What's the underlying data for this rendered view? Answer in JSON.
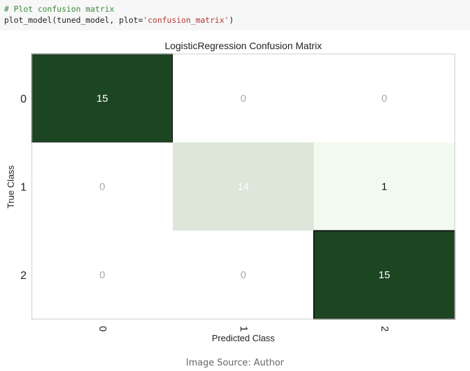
{
  "code": {
    "comment": "# Plot confusion matrix",
    "call_prefix": "plot_model(tuned_model, plot=",
    "call_string": "'confusion_matrix'",
    "call_suffix": ")"
  },
  "chart_data": {
    "type": "heatmap",
    "title": "LogisticRegression Confusion Matrix",
    "xlabel": "Predicted Class",
    "ylabel": "True Class",
    "x_ticks": [
      "0",
      "1",
      "2"
    ],
    "y_ticks": [
      "0",
      "1",
      "2"
    ],
    "matrix": [
      [
        15,
        0,
        0
      ],
      [
        0,
        14,
        1
      ],
      [
        0,
        0,
        15
      ]
    ],
    "colors": {
      "high": "#1c4522",
      "low": "#f2faef",
      "zero": "#ffffff",
      "text_light": "#ffffff",
      "text_dark": "#111111",
      "text_zero": "#aaaaaa"
    }
  },
  "caption": "Image Source: Author"
}
